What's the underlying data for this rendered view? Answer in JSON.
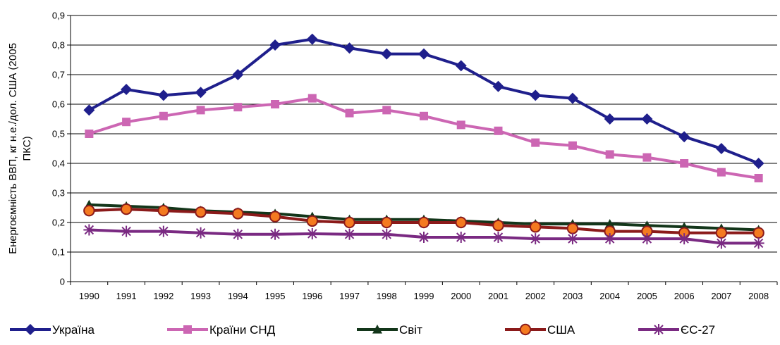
{
  "chart_data": {
    "type": "line",
    "title": "",
    "xlabel": "",
    "ylabel_lines": [
      "Енергоємність ВВП, кг н.е./дол. США (2005",
      "ПКС)"
    ],
    "ylim": [
      0,
      0.9
    ],
    "yticks": [
      "0",
      "0,1",
      "0,2",
      "0,3",
      "0,4",
      "0,5",
      "0,6",
      "0,7",
      "0,8",
      "0,9"
    ],
    "categories": [
      "1990",
      "1991",
      "1992",
      "1993",
      "1994",
      "1995",
      "1996",
      "1997",
      "1998",
      "1999",
      "2000",
      "2001",
      "2002",
      "2003",
      "2004",
      "2005",
      "2006",
      "2007",
      "2008"
    ],
    "grid": true,
    "legend_position": "bottom",
    "series": [
      {
        "name": "Україна",
        "color": "#1f1f8c",
        "marker": "diamond",
        "values": [
          0.58,
          0.65,
          0.63,
          0.64,
          0.7,
          0.8,
          0.82,
          0.79,
          0.77,
          0.77,
          0.73,
          0.66,
          0.63,
          0.62,
          0.55,
          0.55,
          0.49,
          0.45,
          0.4
        ]
      },
      {
        "name": "Країни СНД",
        "color": "#cc66b3",
        "marker": "square",
        "values": [
          0.5,
          0.54,
          0.56,
          0.58,
          0.59,
          0.6,
          0.62,
          0.57,
          0.58,
          0.56,
          0.53,
          0.51,
          0.47,
          0.46,
          0.43,
          0.42,
          0.4,
          0.37,
          0.35
        ]
      },
      {
        "name": "Світ",
        "color": "#13361a",
        "marker": "triangle",
        "values": [
          0.26,
          0.255,
          0.25,
          0.24,
          0.235,
          0.23,
          0.22,
          0.21,
          0.21,
          0.21,
          0.205,
          0.2,
          0.195,
          0.195,
          0.195,
          0.19,
          0.185,
          0.18,
          0.175
        ]
      },
      {
        "name": "США",
        "color": "#8b1a1a",
        "marker": "circle",
        "values": [
          0.24,
          0.245,
          0.24,
          0.235,
          0.23,
          0.22,
          0.205,
          0.2,
          0.2,
          0.2,
          0.2,
          0.19,
          0.185,
          0.18,
          0.17,
          0.17,
          0.165,
          0.165,
          0.165
        ]
      },
      {
        "name": "ЄС-27",
        "color": "#7a2a82",
        "marker": "star",
        "values": [
          0.175,
          0.17,
          0.17,
          0.165,
          0.16,
          0.16,
          0.162,
          0.16,
          0.16,
          0.15,
          0.15,
          0.15,
          0.145,
          0.145,
          0.145,
          0.145,
          0.145,
          0.13,
          0.13
        ]
      }
    ]
  }
}
